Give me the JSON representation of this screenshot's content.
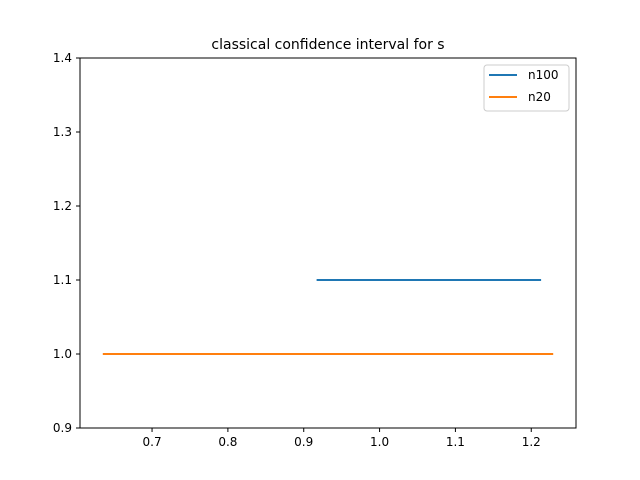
{
  "chart_data": {
    "type": "line",
    "title": "classical confidence interval for s",
    "xlabel": "",
    "ylabel": "",
    "xlim": [
      0.605,
      1.259
    ],
    "ylim": [
      0.9,
      1.4
    ],
    "xticks": [
      0.7,
      0.8,
      0.9,
      1.0,
      1.1,
      1.2
    ],
    "xtick_labels": [
      "0.7",
      "0.8",
      "0.9",
      "1.0",
      "1.1",
      "1.2"
    ],
    "yticks": [
      0.9,
      1.0,
      1.1,
      1.2,
      1.3,
      1.4
    ],
    "ytick_labels": [
      "0.9",
      "1.0",
      "1.1",
      "1.2",
      "1.3",
      "1.4"
    ],
    "grid": false,
    "legend_position": "top-right",
    "series": [
      {
        "name": "n100",
        "color": "#1f77b4",
        "x": [
          0.917,
          1.213
        ],
        "y": [
          1.1,
          1.1
        ]
      },
      {
        "name": "n20",
        "color": "#ff7f0e",
        "x": [
          0.635,
          1.229
        ],
        "y": [
          1.0,
          1.0
        ]
      }
    ]
  }
}
